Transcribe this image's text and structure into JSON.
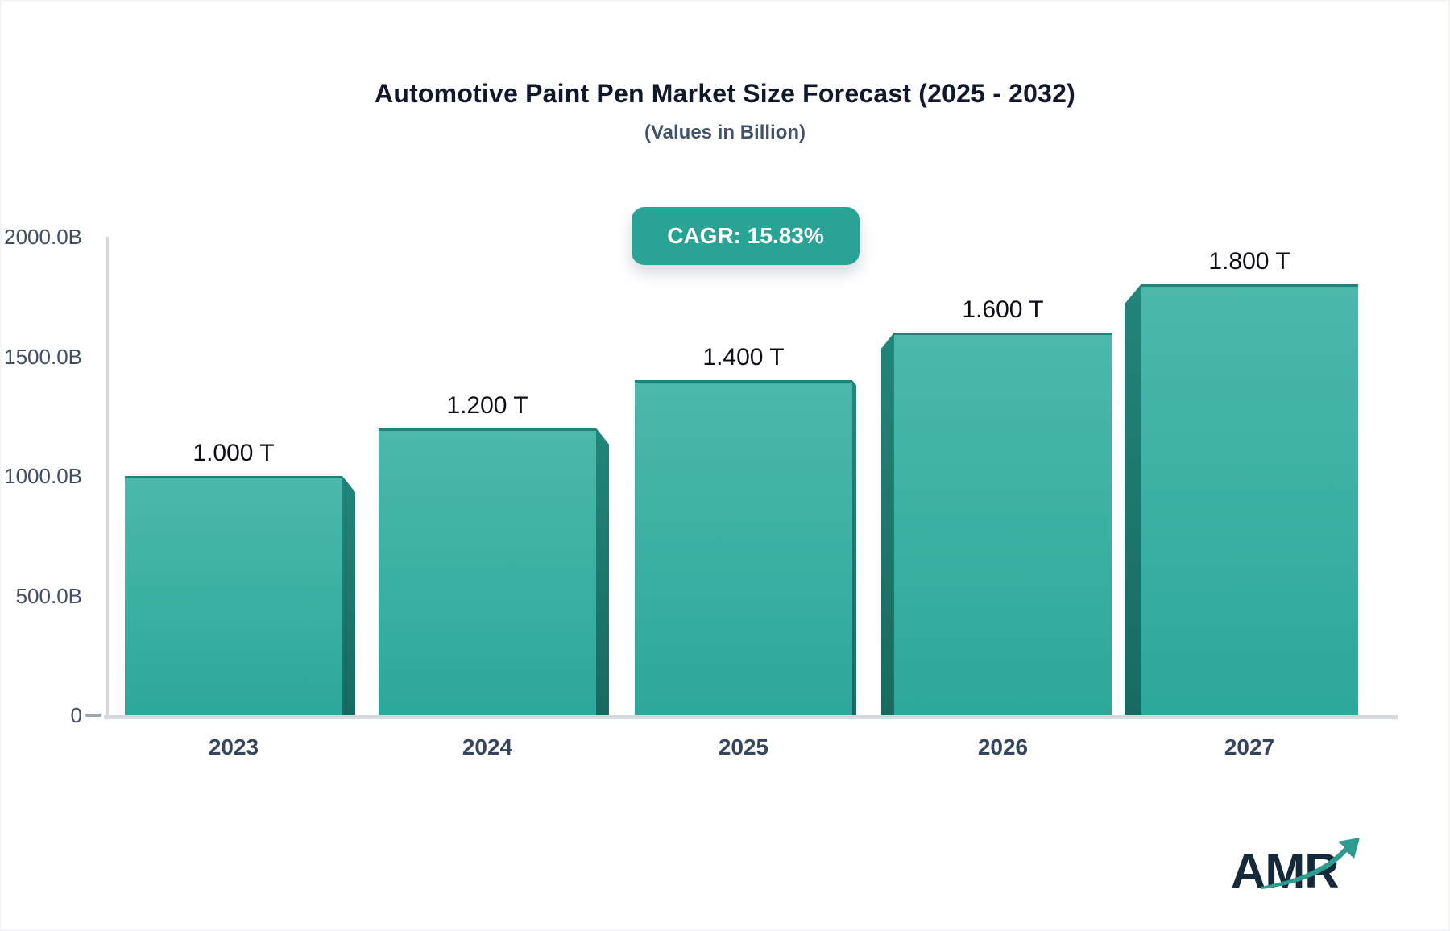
{
  "header": {
    "title": "Automotive Paint Pen Market Size Forecast (2025 - 2032)",
    "subtitle": "(Values in Billion)"
  },
  "badge": {
    "label": "CAGR: 15.83%"
  },
  "chart_data": {
    "type": "bar",
    "title": "Automotive Paint Pen Market Size Forecast (2025 - 2032)",
    "subtitle": "(Values in Billion)",
    "cagr_pct": 15.83,
    "cagr_label": "CAGR: 15.83%",
    "categories": [
      "2023",
      "2024",
      "2025",
      "2026",
      "2027"
    ],
    "values_billion": [
      1000,
      1200,
      1400,
      1600,
      1800
    ],
    "bar_labels": [
      "1.000 T",
      "1.200 T",
      "1.400 T",
      "1.600 T",
      "1.800 T"
    ],
    "y_axis": {
      "range": [
        0,
        2000
      ],
      "ticks": [
        {
          "label": "2000.0B",
          "value": 2000
        },
        {
          "label": "1500.0B",
          "value": 1500
        },
        {
          "label": "1000.0B",
          "value": 1000
        },
        {
          "label": "500.0B",
          "value": 500
        },
        {
          "label": "0",
          "value": 0
        }
      ]
    },
    "grid": false,
    "legend": false,
    "colors": {
      "bar_top": "#4cb8ac",
      "bar_bottom": "#2ca89b",
      "bar_side_top": "#23857a",
      "bar_side_bottom": "#186a60",
      "accent": "#2aa397",
      "axis_line": "#d5d8dd"
    }
  },
  "branding": {
    "logo_text": "AMR"
  }
}
